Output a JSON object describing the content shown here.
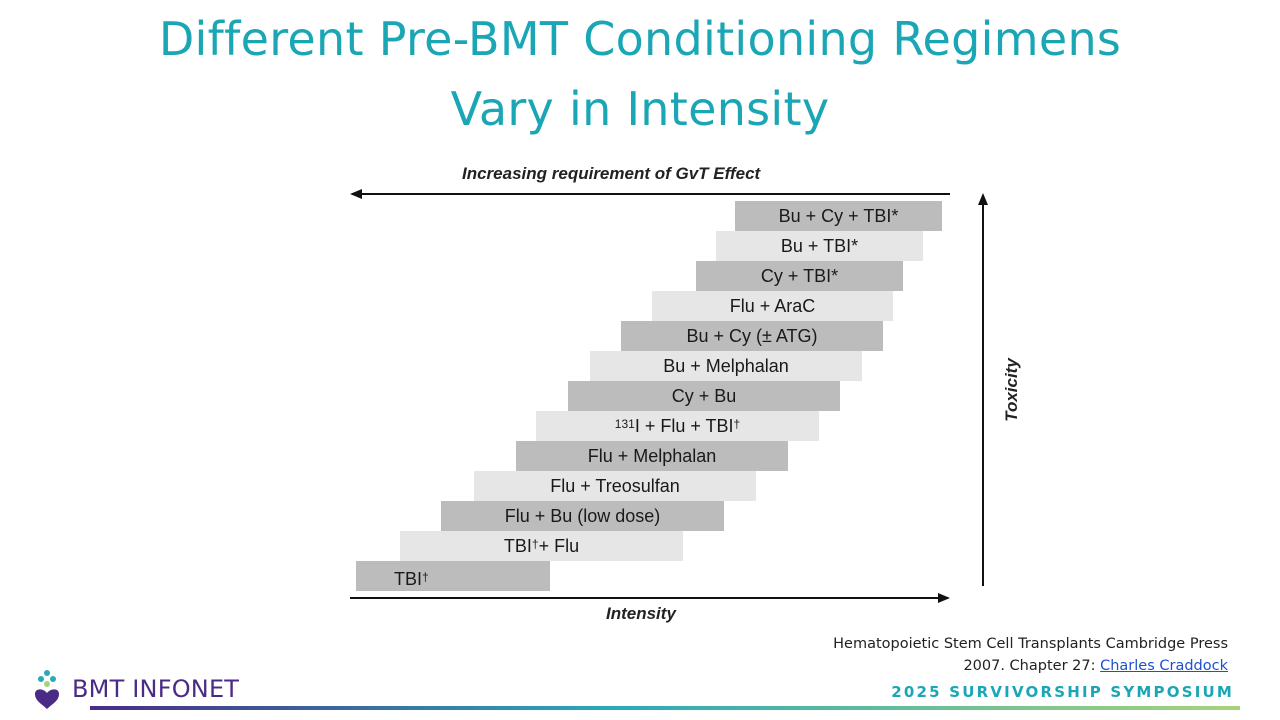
{
  "title": {
    "line1": "Different Pre-BMT Conditioning Regimens",
    "line2": "Vary in Intensity"
  },
  "diagram": {
    "gvt_axis_label": "Increasing requirement of GvT Effect",
    "intensity_axis_label": "Intensity",
    "toxicity_axis_label": "Toxicity",
    "regimens": [
      {
        "label": "Bu + Cy + TBI*",
        "shade": "dark"
      },
      {
        "label": "Bu + TBI*",
        "shade": "light"
      },
      {
        "label": "Cy + TBI*",
        "shade": "dark"
      },
      {
        "label": "Flu + AraC",
        "shade": "light"
      },
      {
        "label": "Bu + Cy (± ATG)",
        "shade": "dark"
      },
      {
        "label": "Bu + Melphalan",
        "shade": "light"
      },
      {
        "label": "Cy + Bu",
        "shade": "dark"
      },
      {
        "label": "I + Flu + TBI",
        "sup_pre": "131",
        "sup_post": "†",
        "shade": "light"
      },
      {
        "label": "Flu + Melphalan",
        "shade": "dark"
      },
      {
        "label": "Flu + Treosulfan",
        "shade": "light"
      },
      {
        "label": "Flu + Bu (low dose)",
        "shade": "dark"
      },
      {
        "label": "TBI + Flu",
        "sup_mid": "†",
        "shade": "light"
      },
      {
        "label": "TBI",
        "sup_post": "†",
        "shade": "dark"
      }
    ]
  },
  "citation": {
    "line1": "Hematopoietic Stem Cell Transplants Cambridge Press",
    "line2_prefix": "2007. Chapter 27: ",
    "link_text": "Charles Craddock"
  },
  "footer": {
    "logo_text": "BMT INFONET",
    "event": "2025 SURVIVORSHIP SYMPOSIUM"
  },
  "colors": {
    "title": "#1aa6b5",
    "logo": "#4a2b86",
    "bar_dark": "#bcbcbc",
    "bar_light": "#e6e6e6"
  }
}
